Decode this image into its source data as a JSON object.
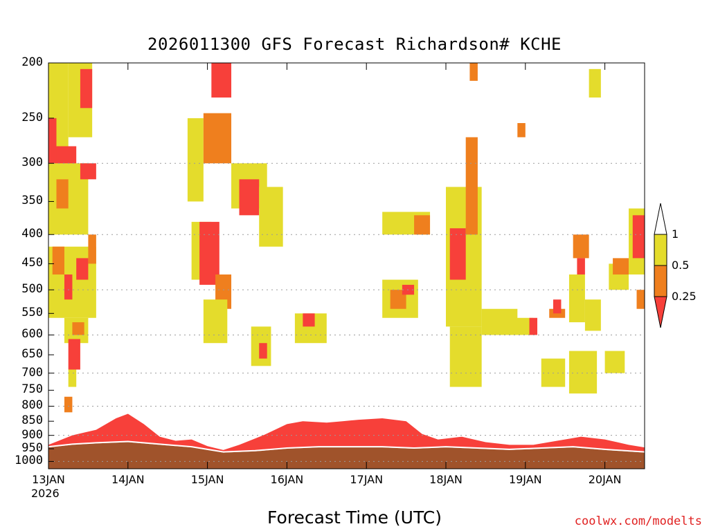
{
  "chart_data": {
    "type": "heatmap",
    "title": "2026011300 GFS Forecast Richardson# KCHE",
    "xlabel": "Forecast Time (UTC)",
    "ylabel": "",
    "y_scale": "log-pressure",
    "y_ticks": [
      200,
      250,
      300,
      350,
      400,
      450,
      500,
      550,
      600,
      650,
      700,
      750,
      800,
      850,
      900,
      950,
      1000
    ],
    "ylim": [
      1030,
      200
    ],
    "x_ticks": [
      "13JAN",
      "14JAN",
      "15JAN",
      "16JAN",
      "17JAN",
      "18JAN",
      "19JAN",
      "20JAN"
    ],
    "x_year": "2026",
    "xlim_days": [
      0,
      7.5
    ],
    "gridlines": [
      300,
      400,
      500,
      600,
      700,
      800,
      900,
      1000
    ],
    "legend": {
      "bins": [
        {
          "label": "1",
          "color": "#ffffff"
        },
        {
          "label": "0.5",
          "color": "#e4dc2c"
        },
        {
          "label": "0.25",
          "color": "#ef7f1e"
        },
        {
          "label": "",
          "color": "#f7403a"
        }
      ],
      "tick_labels": [
        "1",
        "0.5",
        "0.25"
      ]
    },
    "colors": {
      "yellow": "#e4dc2c",
      "orange": "#ef7f1e",
      "red": "#f7403a",
      "ground": "#a0532b"
    },
    "cells": [
      {
        "t0": 0.0,
        "t1": 0.25,
        "p0": 300,
        "p1": 200,
        "cat": "yellow"
      },
      {
        "t0": 0.25,
        "t1": 0.55,
        "p0": 270,
        "p1": 200,
        "cat": "yellow"
      },
      {
        "t0": 0.4,
        "t1": 0.55,
        "p0": 240,
        "p1": 205,
        "cat": "red"
      },
      {
        "t0": 0.0,
        "t1": 0.1,
        "p0": 330,
        "p1": 250,
        "cat": "red"
      },
      {
        "t0": 0.1,
        "t1": 0.35,
        "p0": 310,
        "p1": 280,
        "cat": "red"
      },
      {
        "t0": 0.0,
        "t1": 0.5,
        "p0": 400,
        "p1": 300,
        "cat": "yellow"
      },
      {
        "t0": 0.1,
        "t1": 0.25,
        "p0": 360,
        "p1": 320,
        "cat": "orange"
      },
      {
        "t0": 0.0,
        "t1": 0.6,
        "p0": 560,
        "p1": 420,
        "cat": "yellow"
      },
      {
        "t0": 0.05,
        "t1": 0.2,
        "p0": 470,
        "p1": 420,
        "cat": "orange"
      },
      {
        "t0": 0.2,
        "t1": 0.3,
        "p0": 520,
        "p1": 470,
        "cat": "red"
      },
      {
        "t0": 0.35,
        "t1": 0.5,
        "p0": 480,
        "p1": 440,
        "cat": "red"
      },
      {
        "t0": 0.5,
        "t1": 0.6,
        "p0": 450,
        "p1": 400,
        "cat": "orange"
      },
      {
        "t0": 0.4,
        "t1": 0.6,
        "p0": 320,
        "p1": 300,
        "cat": "red"
      },
      {
        "t0": 0.2,
        "t1": 0.5,
        "p0": 620,
        "p1": 560,
        "cat": "yellow"
      },
      {
        "t0": 0.25,
        "t1": 0.4,
        "p0": 690,
        "p1": 610,
        "cat": "red"
      },
      {
        "t0": 0.3,
        "t1": 0.45,
        "p0": 600,
        "p1": 570,
        "cat": "orange"
      },
      {
        "t0": 0.25,
        "t1": 0.35,
        "p0": 740,
        "p1": 690,
        "cat": "yellow"
      },
      {
        "t0": 0.2,
        "t1": 0.3,
        "p0": 820,
        "p1": 770,
        "cat": "orange"
      },
      {
        "t0": 1.75,
        "t1": 1.95,
        "p0": 350,
        "p1": 250,
        "cat": "yellow"
      },
      {
        "t0": 1.95,
        "t1": 2.3,
        "p0": 300,
        "p1": 245,
        "cat": "orange"
      },
      {
        "t0": 2.05,
        "t1": 2.3,
        "p0": 230,
        "p1": 200,
        "cat": "red"
      },
      {
        "t0": 1.8,
        "t1": 2.05,
        "p0": 480,
        "p1": 380,
        "cat": "yellow"
      },
      {
        "t0": 1.9,
        "t1": 2.15,
        "p0": 490,
        "p1": 380,
        "cat": "red"
      },
      {
        "t0": 2.1,
        "t1": 2.3,
        "p0": 540,
        "p1": 470,
        "cat": "orange"
      },
      {
        "t0": 1.95,
        "t1": 2.25,
        "p0": 620,
        "p1": 520,
        "cat": "yellow"
      },
      {
        "t0": 2.3,
        "t1": 2.75,
        "p0": 360,
        "p1": 300,
        "cat": "yellow"
      },
      {
        "t0": 2.4,
        "t1": 2.65,
        "p0": 370,
        "p1": 320,
        "cat": "red"
      },
      {
        "t0": 2.65,
        "t1": 2.95,
        "p0": 420,
        "p1": 330,
        "cat": "yellow"
      },
      {
        "t0": 2.55,
        "t1": 2.8,
        "p0": 680,
        "p1": 580,
        "cat": "yellow"
      },
      {
        "t0": 2.65,
        "t1": 2.75,
        "p0": 660,
        "p1": 620,
        "cat": "red"
      },
      {
        "t0": 3.1,
        "t1": 3.5,
        "p0": 620,
        "p1": 550,
        "cat": "yellow"
      },
      {
        "t0": 3.2,
        "t1": 3.35,
        "p0": 580,
        "p1": 550,
        "cat": "red"
      },
      {
        "t0": 4.2,
        "t1": 4.65,
        "p0": 560,
        "p1": 480,
        "cat": "yellow"
      },
      {
        "t0": 4.3,
        "t1": 4.5,
        "p0": 540,
        "p1": 500,
        "cat": "orange"
      },
      {
        "t0": 4.45,
        "t1": 4.6,
        "p0": 510,
        "p1": 490,
        "cat": "red"
      },
      {
        "t0": 4.2,
        "t1": 4.8,
        "p0": 400,
        "p1": 365,
        "cat": "yellow"
      },
      {
        "t0": 4.6,
        "t1": 4.8,
        "p0": 400,
        "p1": 370,
        "cat": "orange"
      },
      {
        "t0": 5.0,
        "t1": 5.45,
        "p0": 580,
        "p1": 330,
        "cat": "yellow"
      },
      {
        "t0": 5.05,
        "t1": 5.25,
        "p0": 480,
        "p1": 390,
        "cat": "red"
      },
      {
        "t0": 5.25,
        "t1": 5.4,
        "p0": 400,
        "p1": 270,
        "cat": "orange"
      },
      {
        "t0": 5.05,
        "t1": 5.45,
        "p0": 740,
        "p1": 580,
        "cat": "yellow"
      },
      {
        "t0": 5.3,
        "t1": 5.4,
        "p0": 215,
        "p1": 200,
        "cat": "orange"
      },
      {
        "t0": 5.45,
        "t1": 5.9,
        "p0": 600,
        "p1": 540,
        "cat": "yellow"
      },
      {
        "t0": 5.8,
        "t1": 6.1,
        "p0": 600,
        "p1": 560,
        "cat": "yellow"
      },
      {
        "t0": 6.05,
        "t1": 6.15,
        "p0": 600,
        "p1": 560,
        "cat": "red"
      },
      {
        "t0": 6.2,
        "t1": 6.5,
        "p0": 740,
        "p1": 660,
        "cat": "yellow"
      },
      {
        "t0": 6.3,
        "t1": 6.5,
        "p0": 560,
        "p1": 540,
        "cat": "orange"
      },
      {
        "t0": 6.35,
        "t1": 6.45,
        "p0": 550,
        "p1": 520,
        "cat": "red"
      },
      {
        "t0": 6.55,
        "t1": 6.75,
        "p0": 570,
        "p1": 470,
        "cat": "yellow"
      },
      {
        "t0": 6.6,
        "t1": 6.8,
        "p0": 440,
        "p1": 400,
        "cat": "orange"
      },
      {
        "t0": 6.65,
        "t1": 6.75,
        "p0": 470,
        "p1": 440,
        "cat": "red"
      },
      {
        "t0": 6.75,
        "t1": 6.95,
        "p0": 590,
        "p1": 520,
        "cat": "yellow"
      },
      {
        "t0": 6.55,
        "t1": 6.9,
        "p0": 760,
        "p1": 640,
        "cat": "yellow"
      },
      {
        "t0": 7.0,
        "t1": 7.25,
        "p0": 700,
        "p1": 640,
        "cat": "yellow"
      },
      {
        "t0": 7.05,
        "t1": 7.3,
        "p0": 500,
        "p1": 450,
        "cat": "yellow"
      },
      {
        "t0": 7.1,
        "t1": 7.3,
        "p0": 470,
        "p1": 440,
        "cat": "orange"
      },
      {
        "t0": 7.3,
        "t1": 7.5,
        "p0": 470,
        "p1": 360,
        "cat": "yellow"
      },
      {
        "t0": 7.35,
        "t1": 7.5,
        "p0": 440,
        "p1": 370,
        "cat": "red"
      },
      {
        "t0": 7.4,
        "t1": 7.5,
        "p0": 540,
        "p1": 500,
        "cat": "orange"
      },
      {
        "t0": 6.8,
        "t1": 6.95,
        "p0": 230,
        "p1": 205,
        "cat": "yellow"
      },
      {
        "t0": 5.9,
        "t1": 6.0,
        "p0": 270,
        "p1": 255,
        "cat": "orange"
      }
    ],
    "ground_top": [
      [
        0.0,
        945
      ],
      [
        0.3,
        935
      ],
      [
        0.6,
        930
      ],
      [
        1.0,
        925
      ],
      [
        1.4,
        935
      ],
      [
        1.8,
        945
      ],
      [
        2.2,
        965
      ],
      [
        2.6,
        960
      ],
      [
        3.0,
        950
      ],
      [
        3.4,
        945
      ],
      [
        3.8,
        945
      ],
      [
        4.2,
        945
      ],
      [
        4.6,
        950
      ],
      [
        5.0,
        945
      ],
      [
        5.4,
        950
      ],
      [
        5.8,
        955
      ],
      [
        6.2,
        950
      ],
      [
        6.6,
        945
      ],
      [
        7.0,
        955
      ],
      [
        7.5,
        965
      ]
    ],
    "pbl_top": [
      [
        0.0,
        935
      ],
      [
        0.3,
        900
      ],
      [
        0.6,
        880
      ],
      [
        0.85,
        840
      ],
      [
        1.0,
        825
      ],
      [
        1.2,
        860
      ],
      [
        1.4,
        905
      ],
      [
        1.6,
        920
      ],
      [
        1.8,
        915
      ],
      [
        2.0,
        940
      ],
      [
        2.2,
        955
      ],
      [
        2.4,
        935
      ],
      [
        2.7,
        900
      ],
      [
        3.0,
        860
      ],
      [
        3.2,
        850
      ],
      [
        3.5,
        855
      ],
      [
        3.7,
        850
      ],
      [
        3.9,
        845
      ],
      [
        4.2,
        840
      ],
      [
        4.5,
        850
      ],
      [
        4.7,
        895
      ],
      [
        4.9,
        915
      ],
      [
        5.2,
        905
      ],
      [
        5.5,
        925
      ],
      [
        5.8,
        935
      ],
      [
        6.1,
        935
      ],
      [
        6.4,
        920
      ],
      [
        6.7,
        905
      ],
      [
        7.0,
        915
      ],
      [
        7.3,
        935
      ],
      [
        7.5,
        945
      ]
    ]
  }
}
